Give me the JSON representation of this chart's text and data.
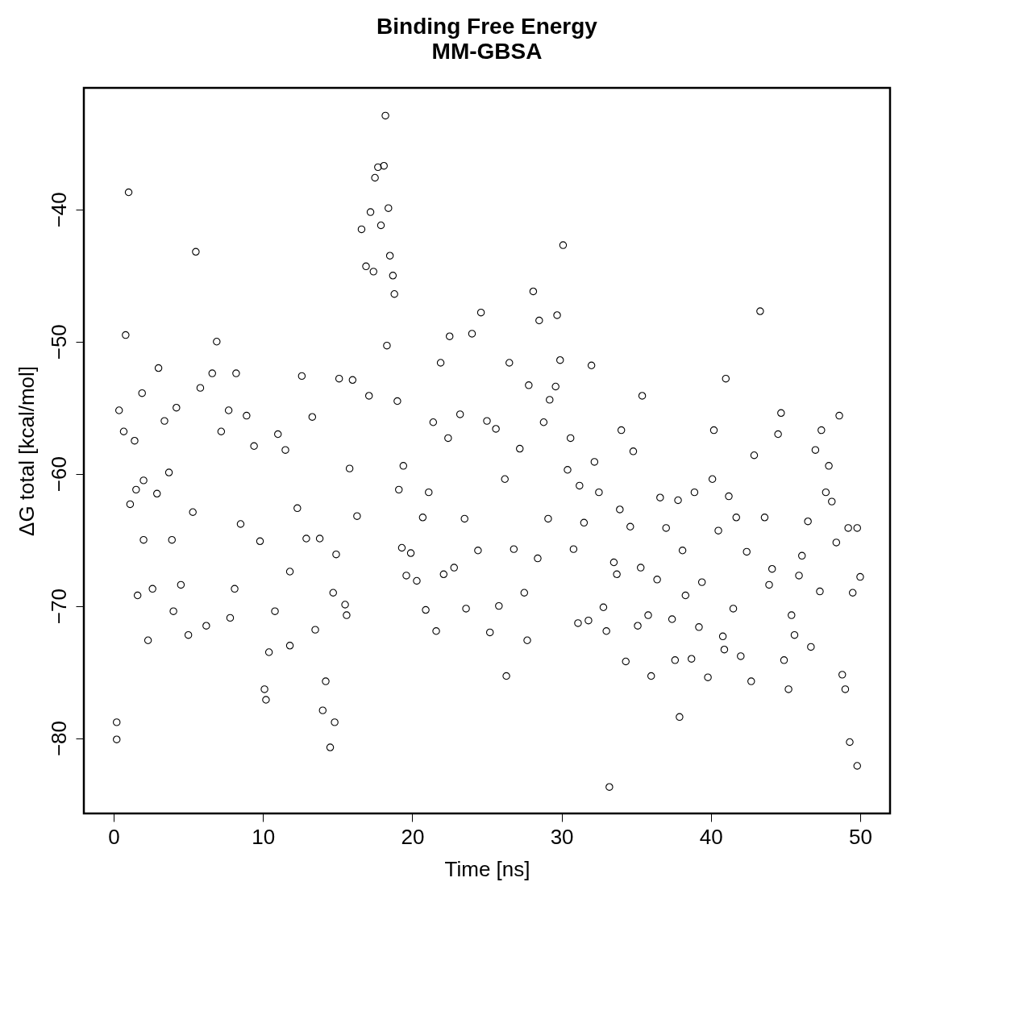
{
  "chart_data": {
    "type": "scatter",
    "title": "Binding Free Energy",
    "subtitle": "MM-GBSA",
    "xlabel": "Time [ns]",
    "ylabel": "ΔG total [kcal/mol]",
    "xlim": [
      -2,
      52
    ],
    "ylim": [
      -85.7,
      -30.8
    ],
    "xticks": [
      0,
      10,
      20,
      30,
      40,
      50
    ],
    "yticks": [
      -80,
      -70,
      -60,
      -50,
      -40
    ],
    "grid": false,
    "marker": "circle",
    "series": [
      {
        "color": "#000000",
        "x": [
          0.2,
          0.2,
          0.36,
          0.67,
          0.8,
          1.0,
          1.1,
          1.4,
          1.5,
          1.6,
          1.9,
          2.0,
          2.0,
          2.3,
          2.6,
          2.9,
          3.0,
          3.4,
          3.7,
          3.9,
          4.0,
          4.2,
          4.5,
          5.0,
          5.3,
          5.5,
          5.8,
          6.2,
          6.6,
          6.9,
          7.2,
          7.7,
          7.8,
          8.1,
          8.2,
          8.5,
          8.9,
          9.4,
          9.8,
          10.1,
          10.2,
          10.4,
          10.8,
          11.0,
          11.5,
          11.8,
          11.8,
          12.3,
          12.6,
          12.9,
          13.3,
          13.5,
          13.8,
          14.0,
          14.2,
          14.5,
          14.7,
          14.8,
          14.9,
          15.1,
          15.5,
          15.6,
          15.8,
          16.0,
          16.3,
          16.6,
          16.9,
          17.1,
          17.2,
          17.4,
          17.5,
          17.7,
          17.9,
          18.1,
          18.2,
          18.3,
          18.4,
          18.5,
          18.7,
          18.8,
          19.0,
          19.1,
          19.4,
          19.3,
          19.6,
          19.9,
          20.3,
          20.7,
          20.9,
          21.1,
          21.4,
          21.6,
          21.9,
          22.1,
          22.4,
          22.5,
          22.8,
          23.2,
          23.5,
          23.6,
          24.0,
          24.4,
          24.6,
          25.0,
          25.2,
          25.6,
          25.8,
          26.2,
          26.3,
          26.5,
          26.8,
          27.2,
          27.5,
          27.7,
          27.8,
          28.1,
          28.4,
          28.5,
          28.8,
          29.1,
          29.2,
          29.6,
          29.7,
          29.9,
          30.1,
          30.4,
          30.6,
          30.8,
          31.1,
          31.2,
          31.5,
          31.8,
          32.0,
          32.2,
          32.5,
          32.8,
          33.0,
          33.2,
          33.5,
          33.7,
          33.9,
          34.0,
          34.3,
          34.6,
          34.8,
          35.1,
          35.3,
          35.4,
          35.8,
          36.0,
          36.4,
          36.6,
          37.0,
          37.4,
          37.6,
          37.8,
          37.9,
          38.1,
          38.3,
          38.7,
          38.9,
          39.2,
          39.4,
          39.8,
          40.1,
          40.2,
          40.5,
          40.8,
          40.9,
          41.0,
          41.2,
          41.5,
          41.7,
          42.0,
          42.4,
          42.7,
          42.9,
          43.3,
          43.6,
          43.9,
          44.1,
          44.5,
          44.7,
          44.9,
          45.2,
          45.4,
          45.6,
          45.9,
          46.1,
          46.5,
          46.7,
          47.0,
          47.3,
          47.4,
          47.7,
          47.9,
          48.1,
          48.4,
          48.6,
          48.8,
          49.0,
          49.2,
          49.3,
          49.5,
          49.8,
          49.8,
          50.0
        ],
        "values": [
          -80.1,
          -78.8,
          -55.2,
          -56.8,
          -49.5,
          -38.7,
          -62.3,
          -57.5,
          -61.2,
          -69.2,
          -53.9,
          -65.0,
          -60.5,
          -72.6,
          -68.7,
          -61.5,
          -52.0,
          -56.0,
          -59.9,
          -65.0,
          -70.4,
          -55.0,
          -68.4,
          -72.2,
          -62.9,
          -43.2,
          -53.5,
          -71.5,
          -52.4,
          -50.0,
          -56.8,
          -55.2,
          -70.9,
          -68.7,
          -52.4,
          -63.8,
          -55.6,
          -57.9,
          -65.1,
          -76.3,
          -77.1,
          -73.5,
          -70.4,
          -57.0,
          -58.2,
          -67.4,
          -73.0,
          -62.6,
          -52.6,
          -64.9,
          -55.7,
          -71.8,
          -64.9,
          -77.9,
          -75.7,
          -80.7,
          -69.0,
          -78.8,
          -66.1,
          -52.8,
          -69.9,
          -70.7,
          -59.6,
          -52.9,
          -63.2,
          -41.5,
          -44.3,
          -54.1,
          -40.2,
          -44.7,
          -37.6,
          -36.8,
          -41.2,
          -36.7,
          -32.9,
          -50.3,
          -39.9,
          -43.5,
          -45.0,
          -46.4,
          -54.5,
          -61.2,
          -59.4,
          -65.6,
          -67.7,
          -66.0,
          -68.1,
          -63.3,
          -70.3,
          -61.4,
          -56.1,
          -71.9,
          -51.6,
          -67.6,
          -57.3,
          -49.6,
          -67.1,
          -55.5,
          -63.4,
          -70.2,
          -49.4,
          -65.8,
          -47.8,
          -56.0,
          -72.0,
          -56.6,
          -70.0,
          -60.4,
          -75.3,
          -51.6,
          -65.7,
          -58.1,
          -69.0,
          -72.6,
          -53.3,
          -46.2,
          -66.4,
          -48.4,
          -56.1,
          -63.4,
          -54.4,
          -53.4,
          -48.0,
          -51.4,
          -42.7,
          -59.7,
          -57.3,
          -65.7,
          -71.3,
          -60.9,
          -63.7,
          -71.1,
          -51.8,
          -59.1,
          -61.4,
          -70.1,
          -71.9,
          -83.7,
          -66.7,
          -67.6,
          -62.7,
          -56.7,
          -74.2,
          -64.0,
          -58.3,
          -71.5,
          -67.1,
          -54.1,
          -70.7,
          -75.3,
          -68.0,
          -61.8,
          -64.1,
          -71.0,
          -74.1,
          -62.0,
          -78.4,
          -65.8,
          -69.2,
          -74.0,
          -61.4,
          -71.6,
          -68.2,
          -75.4,
          -60.4,
          -56.7,
          -64.3,
          -72.3,
          -73.3,
          -52.8,
          -61.7,
          -70.2,
          -63.3,
          -73.8,
          -65.9,
          -75.7,
          -58.6,
          -47.7,
          -63.3,
          -68.4,
          -67.2,
          -57.0,
          -55.4,
          -74.1,
          -76.3,
          -70.7,
          -72.2,
          -67.7,
          -66.2,
          -63.6,
          -73.1,
          -58.2,
          -68.9,
          -56.7,
          -61.4,
          -59.4,
          -62.1,
          -65.2,
          -55.6,
          -75.2,
          -76.3,
          -64.1,
          -80.3,
          -69.0,
          -64.1,
          -82.1,
          -67.8
        ]
      }
    ]
  }
}
